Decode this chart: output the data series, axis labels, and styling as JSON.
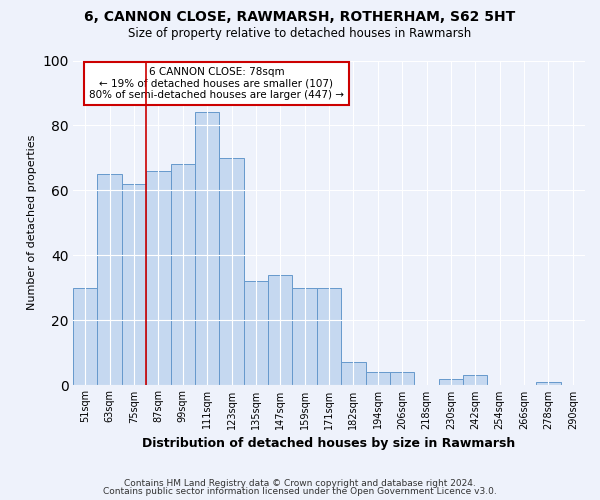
{
  "title1": "6, CANNON CLOSE, RAWMARSH, ROTHERHAM, S62 5HT",
  "title2": "Size of property relative to detached houses in Rawmarsh",
  "xlabel": "Distribution of detached houses by size in Rawmarsh",
  "ylabel": "Number of detached properties",
  "bar_labels": [
    "51sqm",
    "63sqm",
    "75sqm",
    "87sqm",
    "99sqm",
    "111sqm",
    "123sqm",
    "135sqm",
    "147sqm",
    "159sqm",
    "171sqm",
    "182sqm",
    "194sqm",
    "206sqm",
    "218sqm",
    "230sqm",
    "242sqm",
    "254sqm",
    "266sqm",
    "278sqm",
    "290sqm"
  ],
  "bar_values": [
    30,
    65,
    62,
    66,
    68,
    84,
    70,
    32,
    34,
    30,
    30,
    7,
    4,
    4,
    0,
    2,
    3,
    0,
    0,
    1,
    0
  ],
  "bar_color": "#c5d8f0",
  "bar_edge_color": "#6699cc",
  "vline_color": "#cc0000",
  "vline_x_index": 2.5,
  "annotation_title": "6 CANNON CLOSE: 78sqm",
  "annotation_line1": "← 19% of detached houses are smaller (107)",
  "annotation_line2": "80% of semi-detached houses are larger (447) →",
  "annotation_box_color": "#ffffff",
  "annotation_box_edge_color": "#cc0000",
  "ylim": [
    0,
    100
  ],
  "yticks": [
    0,
    20,
    40,
    60,
    80,
    100
  ],
  "footnote1": "Contains HM Land Registry data © Crown copyright and database right 2024.",
  "footnote2": "Contains public sector information licensed under the Open Government Licence v3.0.",
  "bg_color": "#eef2fb"
}
